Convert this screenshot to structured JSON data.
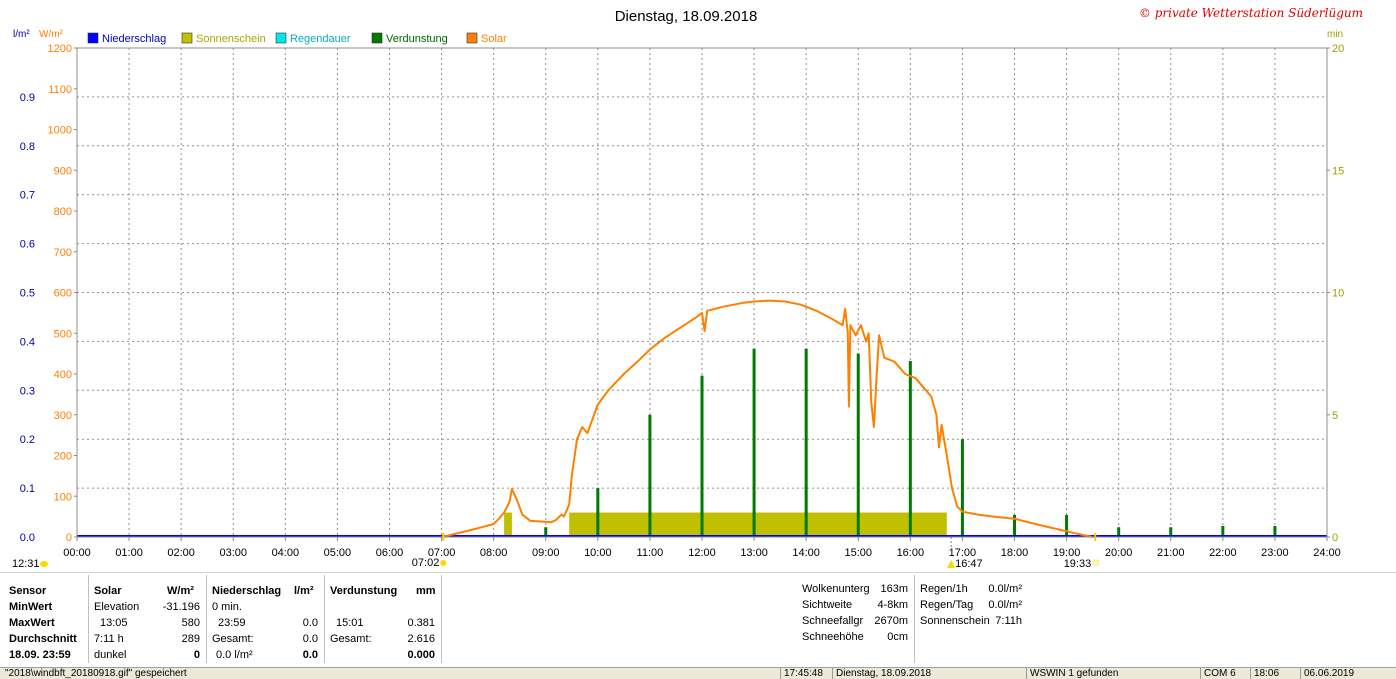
{
  "chart_data": {
    "type": "bar+line",
    "title": "Dienstag, 18.09.2018",
    "watermark": "© private Wetterstation Süderlügum",
    "left_axis_1": {
      "unit": "l/m²",
      "range": [
        0,
        1
      ],
      "ticks": [
        "0.0",
        "0.1",
        "0.2",
        "0.3",
        "0.4",
        "0.5",
        "0.6",
        "0.7",
        "0.8",
        "0.9"
      ]
    },
    "left_axis_2": {
      "unit": "W/m²",
      "range": [
        0,
        1200
      ],
      "ticks": [
        "0",
        "100",
        "200",
        "300",
        "400",
        "500",
        "600",
        "700",
        "800",
        "900",
        "1000",
        "1100",
        "1200"
      ]
    },
    "right_axis": {
      "unit": "min",
      "range": [
        0,
        20
      ],
      "ticks": [
        "0",
        "5",
        "10",
        "15",
        "20"
      ]
    },
    "x_ticks": [
      "00:00",
      "01:00",
      "02:00",
      "03:00",
      "04:00",
      "05:00",
      "06:00",
      "07:00",
      "08:00",
      "09:00",
      "10:00",
      "11:00",
      "12:00",
      "13:00",
      "14:00",
      "15:00",
      "16:00",
      "17:00",
      "18:00",
      "19:00",
      "20:00",
      "21:00",
      "22:00",
      "23:00",
      "24:00"
    ],
    "markers": {
      "moon_rise": "12:31",
      "sunrise": "07:02",
      "moon_set": "16:47",
      "sunset": "19:33"
    },
    "legend": [
      {
        "name": "Niederschlag",
        "color": "#0000ff",
        "text_color": "#0000cc"
      },
      {
        "name": "Sonnenschein",
        "color": "#c0c000",
        "text_color": "#a8a800"
      },
      {
        "name": "Regendauer",
        "color": "#00e5ee",
        "text_color": "#00b0c0"
      },
      {
        "name": "Verdunstung",
        "color": "#007a00",
        "text_color": "#006600"
      },
      {
        "name": "Solar",
        "color": "#ff8000",
        "text_color": "#ff8000"
      }
    ],
    "series": {
      "Niederschlag": {
        "points": [
          [
            0,
            0
          ],
          [
            24,
            0
          ]
        ]
      },
      "Solar": {
        "points": [
          [
            7.0,
            0
          ],
          [
            7.2,
            6
          ],
          [
            7.5,
            15
          ],
          [
            7.8,
            25
          ],
          [
            8.0,
            32
          ],
          [
            8.1,
            45
          ],
          [
            8.2,
            60
          ],
          [
            8.3,
            85
          ],
          [
            8.35,
            118
          ],
          [
            8.45,
            90
          ],
          [
            8.55,
            55
          ],
          [
            8.7,
            40
          ],
          [
            8.9,
            38
          ],
          [
            9.1,
            36
          ],
          [
            9.2,
            42
          ],
          [
            9.3,
            55
          ],
          [
            9.35,
            50
          ],
          [
            9.45,
            80
          ],
          [
            9.5,
            150
          ],
          [
            9.6,
            240
          ],
          [
            9.7,
            270
          ],
          [
            9.8,
            255
          ],
          [
            9.9,
            290
          ],
          [
            10.0,
            325
          ],
          [
            10.2,
            360
          ],
          [
            10.5,
            400
          ],
          [
            10.8,
            435
          ],
          [
            11.0,
            460
          ],
          [
            11.3,
            490
          ],
          [
            11.6,
            515
          ],
          [
            11.9,
            540
          ],
          [
            12.0,
            550
          ],
          [
            12.05,
            505
          ],
          [
            12.1,
            555
          ],
          [
            12.4,
            565
          ],
          [
            12.8,
            575
          ],
          [
            13.0,
            578
          ],
          [
            13.3,
            580
          ],
          [
            13.6,
            578
          ],
          [
            13.9,
            570
          ],
          [
            14.2,
            555
          ],
          [
            14.5,
            535
          ],
          [
            14.7,
            520
          ],
          [
            14.75,
            560
          ],
          [
            14.8,
            500
          ],
          [
            14.82,
            320
          ],
          [
            14.85,
            520
          ],
          [
            14.95,
            495
          ],
          [
            15.05,
            520
          ],
          [
            15.15,
            480
          ],
          [
            15.2,
            500
          ],
          [
            15.25,
            330
          ],
          [
            15.3,
            270
          ],
          [
            15.35,
            390
          ],
          [
            15.4,
            495
          ],
          [
            15.5,
            440
          ],
          [
            15.7,
            430
          ],
          [
            15.9,
            400
          ],
          [
            16.1,
            390
          ],
          [
            16.2,
            375
          ],
          [
            16.4,
            345
          ],
          [
            16.5,
            300
          ],
          [
            16.55,
            220
          ],
          [
            16.6,
            275
          ],
          [
            16.7,
            200
          ],
          [
            16.8,
            120
          ],
          [
            16.9,
            75
          ],
          [
            17.0,
            62
          ],
          [
            17.3,
            55
          ],
          [
            17.6,
            50
          ],
          [
            18.0,
            45
          ],
          [
            18.4,
            32
          ],
          [
            18.8,
            20
          ],
          [
            19.2,
            8
          ],
          [
            19.5,
            0
          ]
        ]
      },
      "Sonnenschein": {
        "bars": [
          [
            8.2,
            8.35,
            1.0
          ],
          [
            9.45,
            16.7,
            1.0
          ]
        ]
      },
      "Verdunstung": {
        "bars": [
          [
            9.0,
            0.4
          ],
          [
            10.0,
            2.0
          ],
          [
            11.0,
            5.0
          ],
          [
            12.0,
            6.6
          ],
          [
            13.0,
            7.7
          ],
          [
            14.0,
            7.7
          ],
          [
            15.0,
            7.5
          ],
          [
            16.0,
            7.2
          ],
          [
            17.0,
            4.0
          ],
          [
            18.0,
            0.9
          ],
          [
            19.0,
            0.9
          ],
          [
            20.0,
            0.4
          ],
          [
            21.0,
            0.4
          ],
          [
            22.0,
            0.45
          ],
          [
            23.0,
            0.45
          ]
        ],
        "unit": "min"
      }
    }
  },
  "info": {
    "sensor": {
      "header": "Sensor",
      "rows": [
        "MinWert",
        "MaxWert",
        "Durchschnitt",
        "18.09.  23:59"
      ]
    },
    "solar": {
      "header": "Solar",
      "unit": "W/m²",
      "rows": [
        [
          "Elevation",
          "-31.196"
        ],
        [
          "13:05",
          "580"
        ],
        [
          "7:11 h",
          "289"
        ],
        [
          "dunkel",
          "0"
        ]
      ]
    },
    "niederschlag": {
      "header": "Niederschlag",
      "unit": "l/m²",
      "rows": [
        [
          "0 min.",
          ""
        ],
        [
          "23:59",
          "0.0"
        ],
        [
          "Gesamt:",
          "0.0"
        ],
        [
          "0.0 l/m²",
          "0.0"
        ]
      ]
    },
    "verdunstung": {
      "header": "Verdunstung",
      "unit": "mm",
      "rows": [
        [
          "",
          ""
        ],
        [
          "15:01",
          "0.381"
        ],
        [
          "Gesamt:",
          "2.616"
        ],
        [
          "",
          "0.000"
        ]
      ]
    },
    "weather": [
      [
        "Wolkenunterg",
        "163m"
      ],
      [
        "Sichtweite",
        "4-8km"
      ],
      [
        "Schneefallgr",
        "2670m"
      ],
      [
        "Schneehöhe",
        "0cm"
      ]
    ],
    "rain": [
      [
        "Regen/1h",
        "0.0l/m²"
      ],
      [
        "Regen/Tag",
        "0.0l/m²"
      ],
      [
        "Sonnenschein",
        "7:11h"
      ]
    ]
  },
  "status": {
    "file": "\"2018\\windbft_20180918.gif\" gespeichert",
    "time": "17:45:48",
    "date": "Dienstag, 18.09.2018",
    "device": "WSWIN 1 gefunden",
    "port": "COM 6",
    "clock": "18:06",
    "date2": "06.06.2019"
  }
}
